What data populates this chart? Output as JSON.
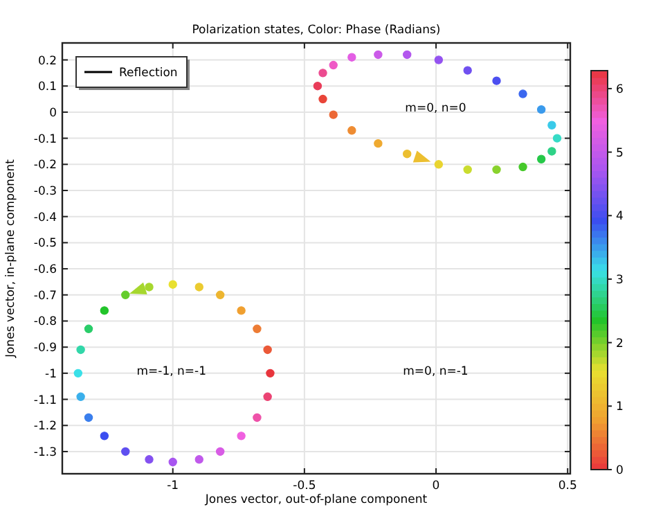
{
  "chart_data": {
    "type": "scatter",
    "title": "Polarization states, Color: Phase (Radians)",
    "xlabel": "Jones vector, out-of-plane component",
    "ylabel": "Jones vector, in-plane component",
    "clim": [
      0,
      6.283
    ],
    "cticks": [
      0,
      1,
      2,
      3,
      4,
      5,
      6
    ],
    "xlim": [
      -1.42,
      0.51
    ],
    "ylim": [
      -1.385,
      0.265
    ],
    "xticks": [
      -1,
      -0.5,
      0,
      0.5
    ],
    "yticks": [
      0.2,
      0.1,
      0,
      -0.1,
      -0.2,
      -0.3,
      -0.4,
      -0.5,
      -0.6,
      -0.7,
      -0.8,
      -0.9,
      -1,
      -1.1,
      -1.2,
      -1.3
    ],
    "grid": true,
    "legend": "top left",
    "marker": "circle",
    "annotations": [
      "m=0, n=0",
      "m=-1, n=-1",
      "m=0, n=-1"
    ],
    "series": [
      {
        "name": "Reflection",
        "x": [
          0.46,
          0.44,
          0.4,
          0.33,
          0.23,
          0.12,
          0.01,
          -0.11,
          -0.22,
          -0.32,
          -0.39,
          -0.43,
          -0.45,
          -0.43,
          -0.39,
          -0.32,
          -0.22,
          -0.11,
          0.01,
          0.12,
          0.23,
          0.33,
          0.4,
          0.44
        ],
        "values": [
          -0.1,
          -0.05,
          0.01,
          0.07,
          0.12,
          0.16,
          0.2,
          0.22,
          0.22,
          0.21,
          0.18,
          0.15,
          0.1,
          0.05,
          -0.01,
          -0.07,
          -0.12,
          -0.16,
          -0.2,
          -0.22,
          -0.22,
          -0.21,
          -0.18,
          -0.15
        ],
        "cvalues": [
          3.0,
          3.26,
          3.52,
          3.79,
          4.05,
          4.31,
          4.57,
          4.83,
          5.09,
          5.36,
          5.62,
          5.88,
          6.14,
          0.12,
          0.38,
          0.64,
          0.9,
          1.17,
          1.43,
          1.69,
          1.95,
          2.21,
          2.48,
          2.74
        ],
        "colors": [
          "#36dbc6",
          "#3acae9",
          "#3a9aec",
          "#3b67ef",
          "#4c4ff0",
          "#7050f0",
          "#9453f0",
          "#b357ee",
          "#cb5ae9",
          "#e35ee4",
          "#ef59c6",
          "#ec4b90",
          "#e93c59",
          "#e94538",
          "#ec6836",
          "#ee8c33",
          "#efaa30",
          "#ecbf30",
          "#e9d430",
          "#cadc2f",
          "#89d22d",
          "#46c92b",
          "#26c848",
          "#2ed287"
        ]
      },
      {
        "x": [
          -0.63,
          -0.64,
          -0.68,
          -0.74,
          -0.82,
          -0.9,
          -1.0,
          -1.09,
          -1.18,
          -1.26,
          -1.32,
          -1.35,
          -1.36,
          -1.35,
          -1.32,
          -1.26,
          -1.18,
          -1.09,
          -1.0,
          -0.9,
          -0.82,
          -0.74,
          -0.68,
          -0.64
        ],
        "values": [
          -1.0,
          -0.91,
          -0.83,
          -0.76,
          -0.7,
          -0.67,
          -0.66,
          -0.67,
          -0.7,
          -0.76,
          -0.83,
          -0.91,
          -1.0,
          -1.09,
          -1.17,
          -1.24,
          -1.3,
          -1.33,
          -1.34,
          -1.33,
          -1.3,
          -1.24,
          -1.17,
          -1.09
        ],
        "cvalues": [
          0.0,
          0.26,
          0.52,
          0.79,
          1.05,
          1.31,
          1.57,
          1.83,
          2.09,
          2.36,
          2.62,
          2.88,
          3.14,
          3.4,
          3.67,
          3.93,
          4.19,
          4.45,
          4.71,
          4.97,
          5.24,
          5.5,
          5.76,
          6.02
        ],
        "colors": [
          "#e8353c",
          "#eb5938",
          "#ed7c34",
          "#f0a030",
          "#edb530",
          "#ebcb30",
          "#e8e030",
          "#a6d72e",
          "#64cd2c",
          "#22c42a",
          "#2acd69",
          "#32d7a9",
          "#3ae0e8",
          "#3aafeb",
          "#3a7fed",
          "#3b4ef0",
          "#5f4ff0",
          "#8450f0",
          "#a855f0",
          "#c059eb",
          "#d85ce5",
          "#f060e0",
          "#ef52a9",
          "#eb4373"
        ]
      }
    ]
  }
}
